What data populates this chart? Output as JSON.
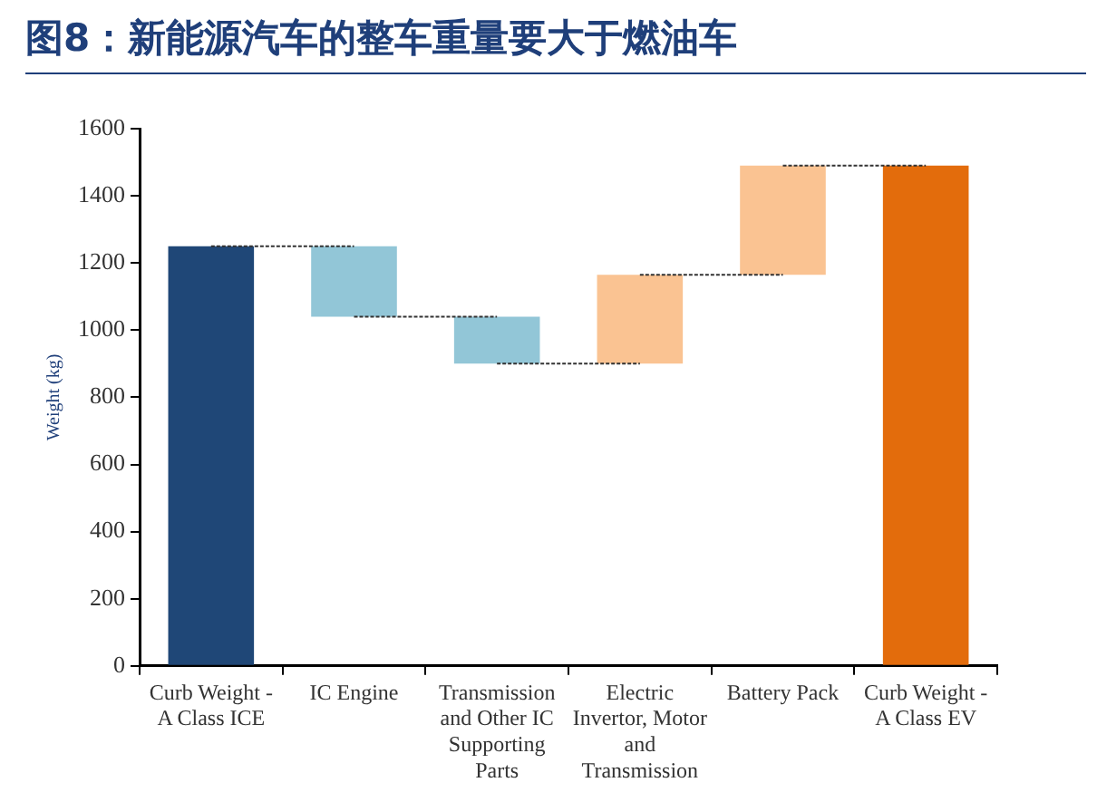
{
  "chart_data": {
    "type": "bar",
    "title": "图8：新能源汽车的整车重量要大于燃油车",
    "ylabel": "Weight (kg)",
    "categories": [
      "Curb Weight - A Class ICE",
      "IC Engine",
      "Transmission and Other IC Supporting Parts",
      "Electric Invertor, Motor and Transmission",
      "Battery Pack",
      "Curb Weight - A Class EV"
    ],
    "series": [
      {
        "type": "bar",
        "values": [
          1250,
          210,
          140,
          265,
          325,
          1490
        ],
        "base": [
          0,
          1040,
          900,
          900,
          1165,
          0
        ],
        "colors": [
          "#1f4777",
          "#92c6d7",
          "#92c6d7",
          "#fac392",
          "#fac392",
          "#e36c0c"
        ]
      },
      {
        "type": "line",
        "x": [
          "Curb Weight - A Class ICE",
          "IC Engine"
        ],
        "values": [
          1250,
          1250
        ],
        "color": "#333333",
        "line_style": "dotted",
        "marker": "none"
      },
      {
        "type": "line",
        "x": [
          "IC Engine",
          "Transmission and Other IC Supporting Parts"
        ],
        "values": [
          1040,
          1040
        ],
        "color": "#333333",
        "line_style": "dotted",
        "marker": "none"
      },
      {
        "type": "line",
        "x": [
          "Transmission and Other IC Supporting Parts",
          "Electric Invertor, Motor and Transmission"
        ],
        "values": [
          900,
          900
        ],
        "color": "#333333",
        "line_style": "dotted",
        "marker": "none"
      },
      {
        "type": "line",
        "x": [
          "Electric Invertor, Motor and Transmission",
          "Battery Pack"
        ],
        "values": [
          1165,
          1165
        ],
        "color": "#333333",
        "line_style": "dotted",
        "marker": "none"
      },
      {
        "type": "line",
        "x": [
          "Battery Pack",
          "Curb Weight - A Class EV"
        ],
        "values": [
          1490,
          1490
        ],
        "color": "#333333",
        "line_style": "dotted",
        "marker": "none"
      }
    ],
    "ylim": [
      0,
      1600
    ],
    "yticks": [
      0,
      200,
      400,
      600,
      800,
      {
        "value": 1000,
        "label": "1000"
      },
      {
        "value": 1200,
        "label": "1200"
      },
      {
        "value": 1400,
        "label": "1400"
      },
      {
        "value": 1600,
        "label": "1600"
      }
    ],
    "grid": false,
    "legend": false
  }
}
